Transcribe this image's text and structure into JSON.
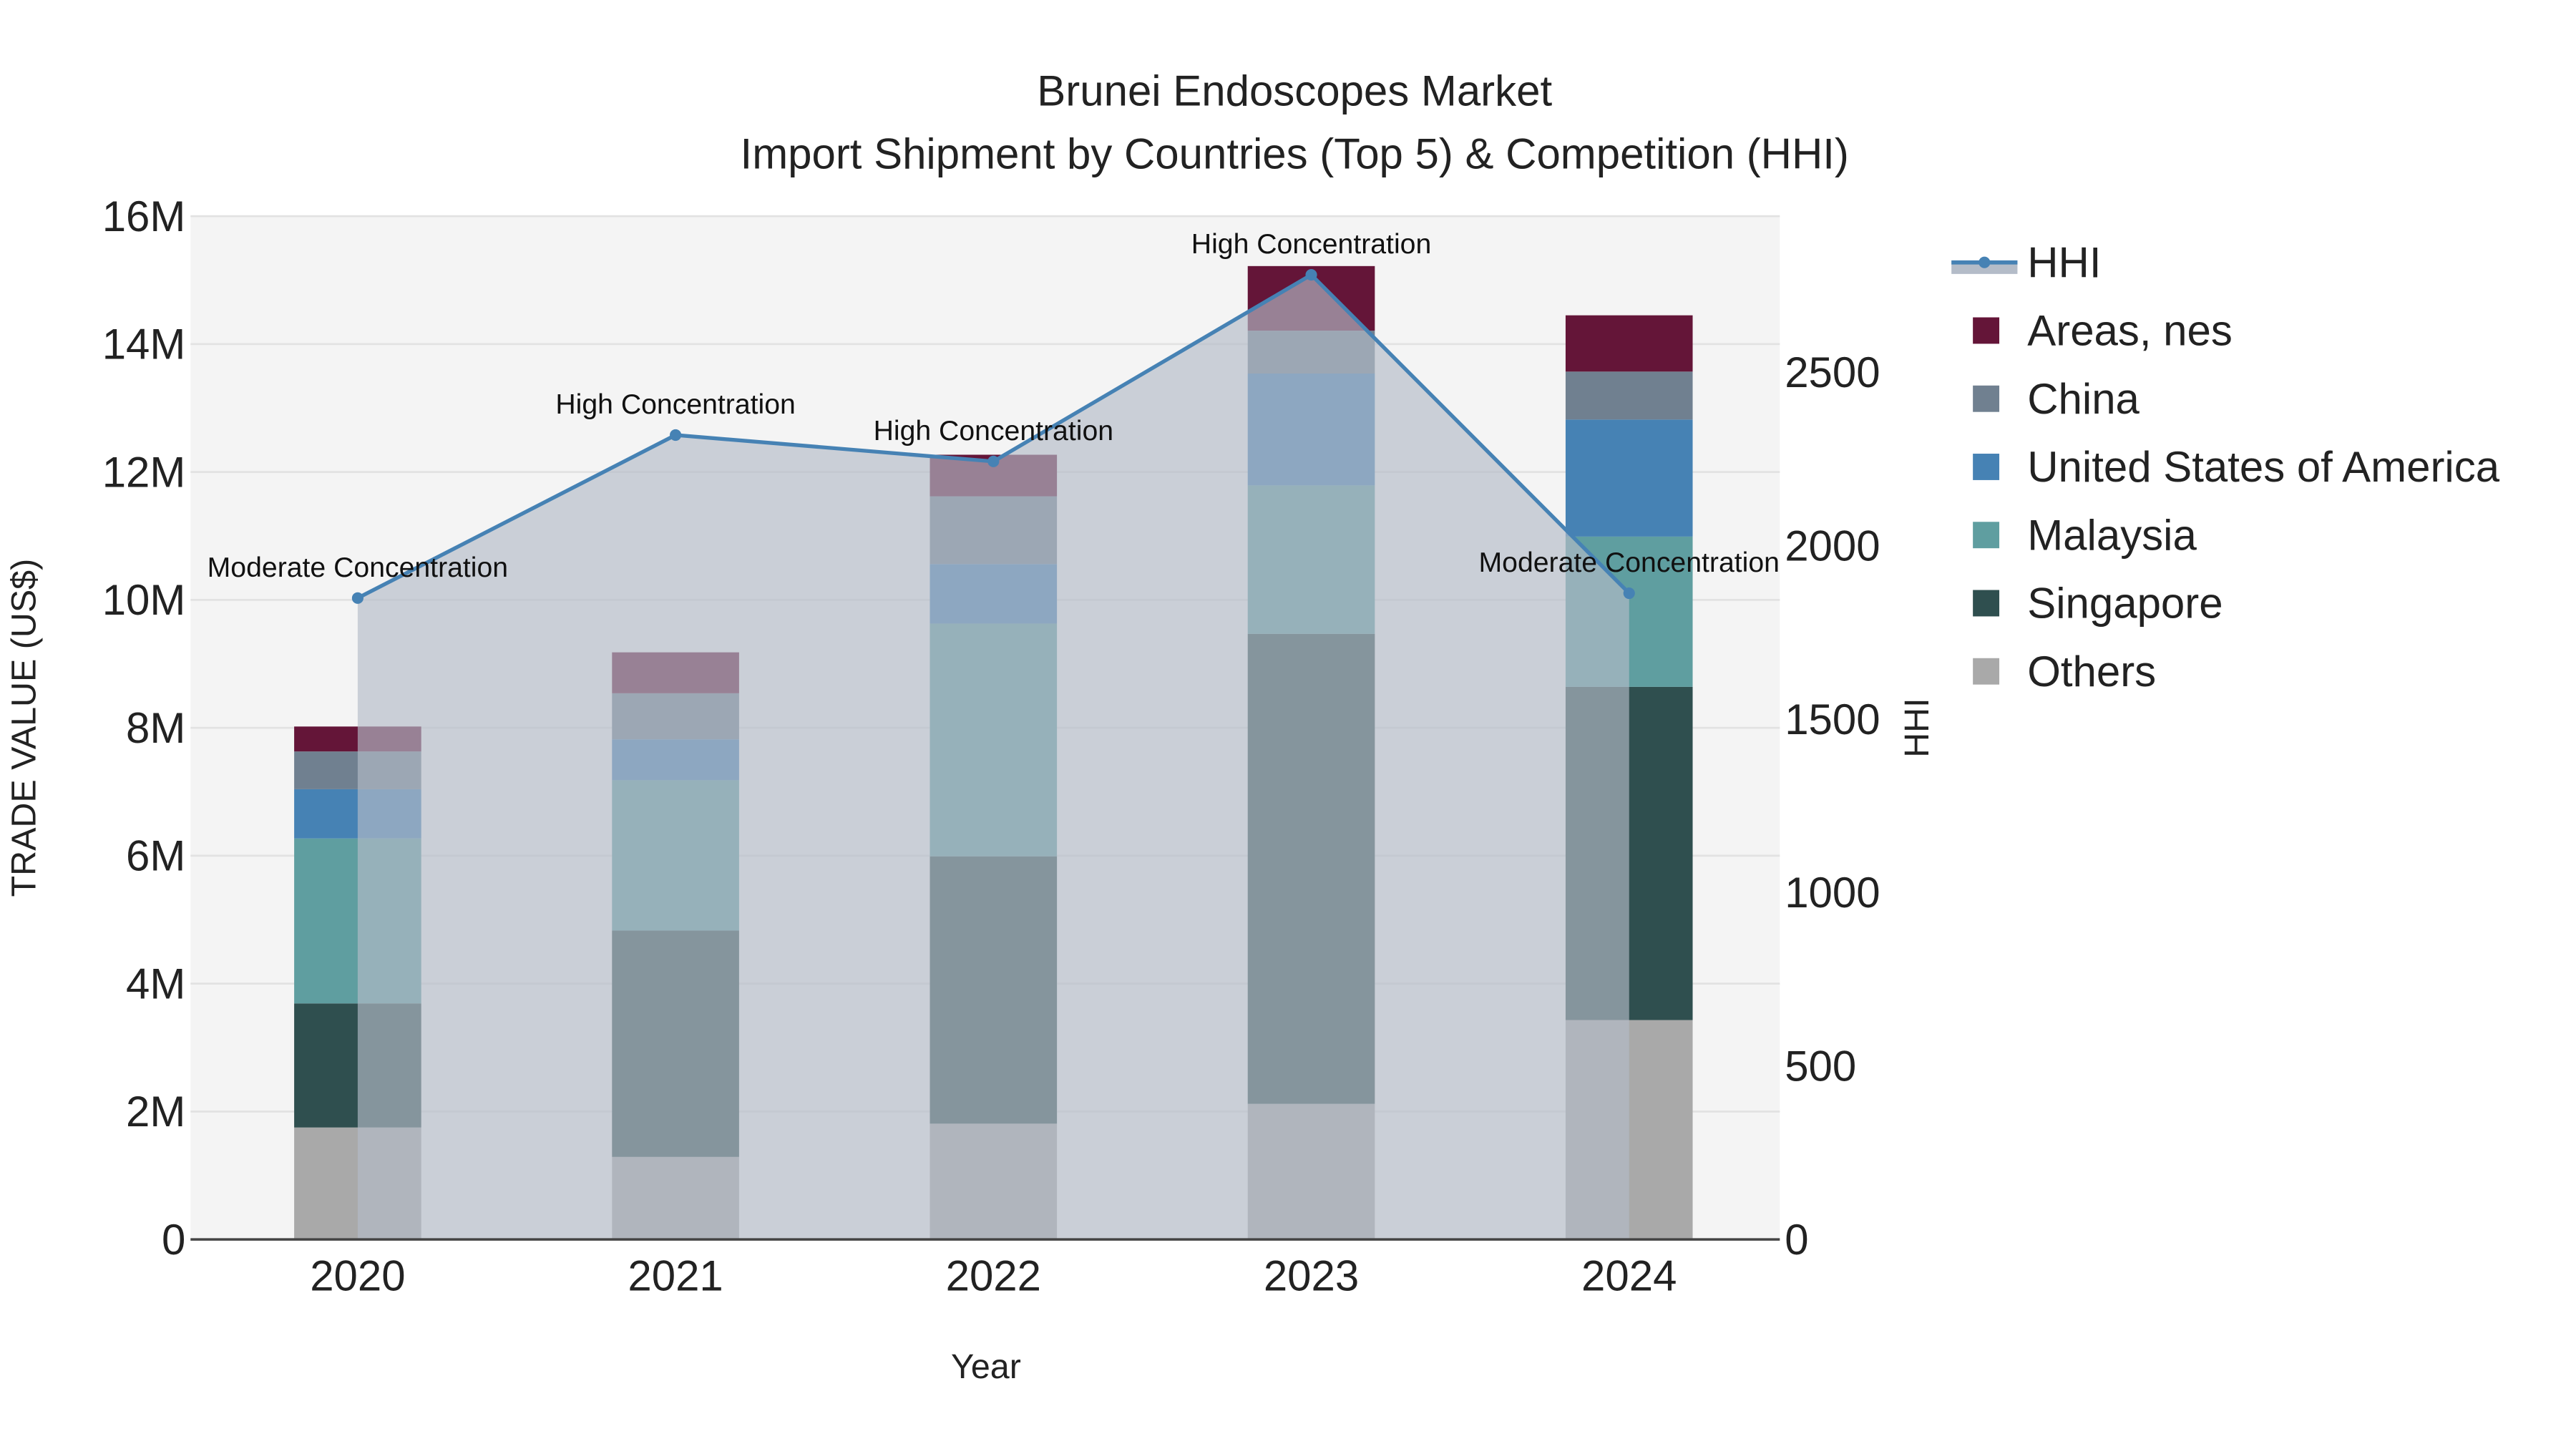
{
  "chart_data": {
    "type": "bar",
    "stacked": true,
    "title": "Brunei Endoscopes Market",
    "subtitle": "Import Shipment by Countries (Top 5) & Competition (HHI)",
    "xlabel": "Year",
    "ylabel": "TRADE VALUE (US$)",
    "y2label": "HHI",
    "categories": [
      "2020",
      "2021",
      "2022",
      "2023",
      "2024"
    ],
    "ylim": [
      0,
      16000000
    ],
    "yticks": [
      0,
      2000000,
      4000000,
      6000000,
      8000000,
      10000000,
      12000000,
      14000000,
      16000000
    ],
    "ytick_labels": [
      "0",
      "2M",
      "4M",
      "6M",
      "8M",
      "10M",
      "12M",
      "14M",
      "16M"
    ],
    "y2lim": [
      0,
      2950
    ],
    "y2ticks": [
      0,
      500,
      1000,
      1500,
      2000,
      2500
    ],
    "y2tick_labels": [
      "0",
      "500",
      "1000",
      "1500",
      "2000",
      "2500"
    ],
    "series": [
      {
        "name": "Others",
        "color": "#a9a9a9",
        "values": [
          1750000,
          1290000,
          1810000,
          2120000,
          3430000
        ]
      },
      {
        "name": "Singapore",
        "color": "#2f4f4f",
        "values": [
          1940000,
          3540000,
          4180000,
          7350000,
          5210000
        ]
      },
      {
        "name": "Malaysia",
        "color": "#5f9ea0",
        "values": [
          2580000,
          2350000,
          3640000,
          2320000,
          2350000
        ]
      },
      {
        "name": "United States of America",
        "color": "#4682b4",
        "values": [
          770000,
          640000,
          930000,
          1750000,
          1830000
        ]
      },
      {
        "name": "China",
        "color": "#708090",
        "values": [
          590000,
          720000,
          1060000,
          670000,
          750000
        ]
      },
      {
        "name": "Areas, nes",
        "color": "#641538",
        "values": [
          390000,
          640000,
          650000,
          1010000,
          880000
        ]
      }
    ],
    "line": {
      "name": "HHI",
      "color": "#4682b4",
      "values": [
        1849,
        2319,
        2243,
        2781,
        1863
      ],
      "annotations": [
        "Moderate Concentration",
        "High Concentration",
        "High Concentration",
        "High Concentration",
        "Moderate Concentration"
      ]
    },
    "legend": [
      "HHI",
      "Areas, nes",
      "China",
      "United States of America",
      "Malaysia",
      "Singapore",
      "Others"
    ],
    "legend_position": "right",
    "grid": true
  }
}
